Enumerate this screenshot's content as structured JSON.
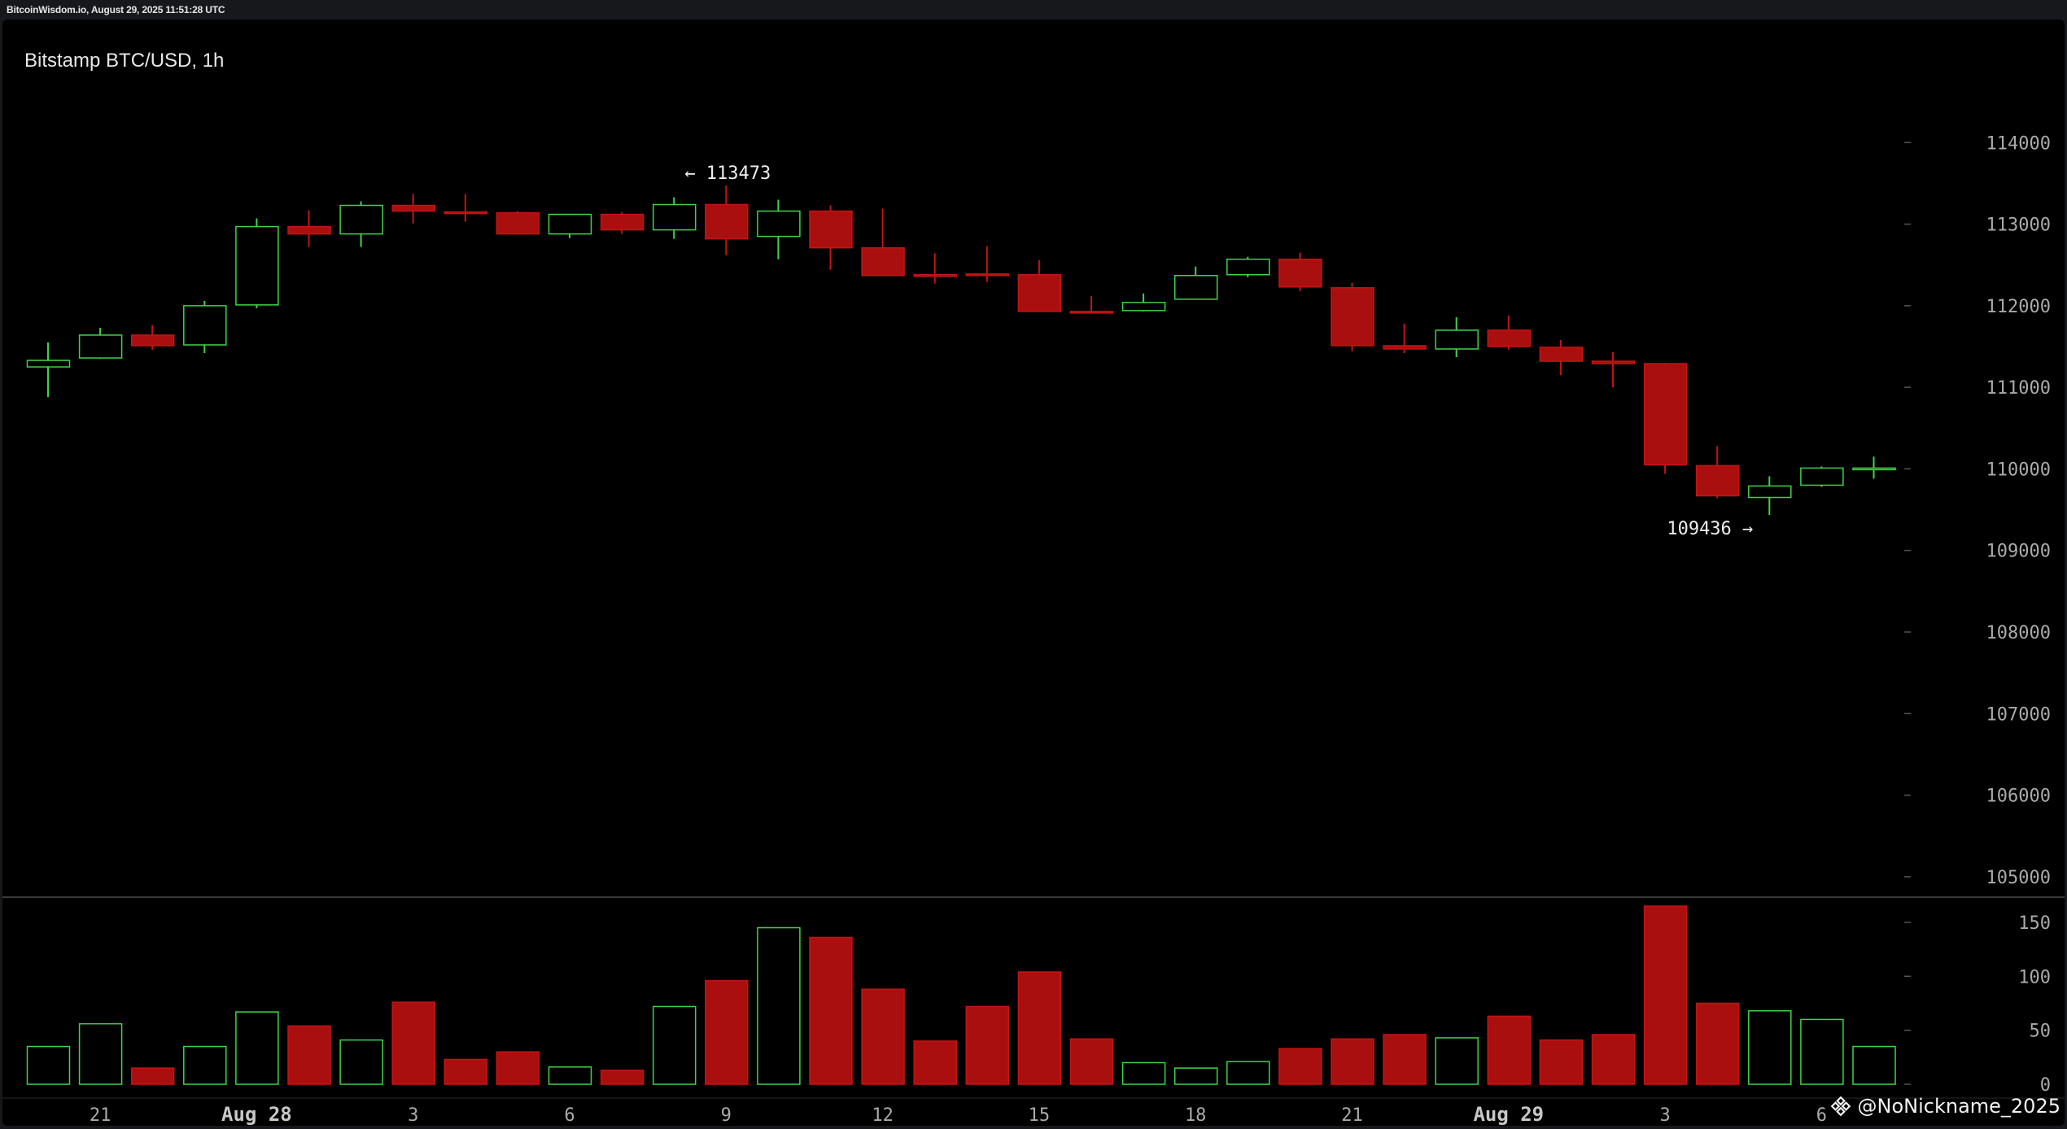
{
  "header": {
    "source_text": "BitcoinWisdom.io, August 29, 2025 11:51:28 UTC"
  },
  "watermark": {
    "text": "@NoNickname_2025",
    "icon": "binance-diamond-icon"
  },
  "colors": {
    "up": "#3fd447",
    "down": "#a90f0f",
    "down_edge": "#c41414",
    "axis_text": "#aaaaaa",
    "grid_tick": "#555555",
    "separator": "#3a3a3a",
    "annotation": "#eeeeee"
  },
  "chart_data": {
    "type": "candlestick",
    "title": "Bitstamp BTC/USD, 1h",
    "price_axis": {
      "ticks": [
        105000,
        106000,
        107000,
        108000,
        109000,
        110000,
        111000,
        112000,
        113000,
        114000
      ],
      "range": [
        104600,
        114950
      ]
    },
    "volume_axis": {
      "ticks": [
        0,
        50,
        100,
        150
      ],
      "range": [
        0,
        168
      ]
    },
    "x_labels": [
      {
        "label": "21",
        "index": 1,
        "bold": false
      },
      {
        "label": "Aug 28",
        "index": 4,
        "bold": true
      },
      {
        "label": "3",
        "index": 7,
        "bold": false
      },
      {
        "label": "6",
        "index": 10,
        "bold": false
      },
      {
        "label": "9",
        "index": 13,
        "bold": false
      },
      {
        "label": "12",
        "index": 16,
        "bold": false
      },
      {
        "label": "15",
        "index": 19,
        "bold": false
      },
      {
        "label": "18",
        "index": 22,
        "bold": false
      },
      {
        "label": "21",
        "index": 25,
        "bold": false
      },
      {
        "label": "Aug 29",
        "index": 28,
        "bold": true
      },
      {
        "label": "3",
        "index": 31,
        "bold": false
      },
      {
        "label": "6",
        "index": 34,
        "bold": false
      }
    ],
    "annotations": [
      {
        "text": "← 113473",
        "index": 13,
        "value": 113473,
        "side": "right"
      },
      {
        "text": "109436 →",
        "index": 33,
        "value": 109436,
        "side": "left"
      }
    ],
    "candles": [
      {
        "o": 111250,
        "h": 111550,
        "l": 110880,
        "c": 111330,
        "v": 35
      },
      {
        "o": 111360,
        "h": 111730,
        "l": 111350,
        "c": 111640,
        "v": 56
      },
      {
        "o": 111640,
        "h": 111760,
        "l": 111460,
        "c": 111510,
        "v": 15
      },
      {
        "o": 111520,
        "h": 112060,
        "l": 111420,
        "c": 112000,
        "v": 35
      },
      {
        "o": 112010,
        "h": 113070,
        "l": 111970,
        "c": 112970,
        "v": 67
      },
      {
        "o": 112970,
        "h": 113170,
        "l": 112720,
        "c": 112880,
        "v": 54
      },
      {
        "o": 112880,
        "h": 113280,
        "l": 112720,
        "c": 113230,
        "v": 41
      },
      {
        "o": 113230,
        "h": 113370,
        "l": 113010,
        "c": 113160,
        "v": 76
      },
      {
        "o": 113150,
        "h": 113370,
        "l": 113030,
        "c": 113140,
        "v": 23
      },
      {
        "o": 113140,
        "h": 113160,
        "l": 112880,
        "c": 112880,
        "v": 30
      },
      {
        "o": 112880,
        "h": 113120,
        "l": 112830,
        "c": 113120,
        "v": 16
      },
      {
        "o": 113120,
        "h": 113150,
        "l": 112880,
        "c": 112930,
        "v": 13
      },
      {
        "o": 112930,
        "h": 113330,
        "l": 112820,
        "c": 113240,
        "v": 72
      },
      {
        "o": 113240,
        "h": 113473,
        "l": 112620,
        "c": 112820,
        "v": 96
      },
      {
        "o": 112850,
        "h": 113300,
        "l": 112570,
        "c": 113160,
        "v": 145
      },
      {
        "o": 113160,
        "h": 113230,
        "l": 112440,
        "c": 112710,
        "v": 136
      },
      {
        "o": 112710,
        "h": 113190,
        "l": 112370,
        "c": 112370,
        "v": 88
      },
      {
        "o": 112380,
        "h": 112640,
        "l": 112270,
        "c": 112370,
        "v": 40
      },
      {
        "o": 112390,
        "h": 112730,
        "l": 112290,
        "c": 112380,
        "v": 72
      },
      {
        "o": 112380,
        "h": 112560,
        "l": 111930,
        "c": 111930,
        "v": 104
      },
      {
        "o": 111930,
        "h": 112120,
        "l": 111910,
        "c": 111920,
        "v": 42
      },
      {
        "o": 111940,
        "h": 112150,
        "l": 111930,
        "c": 112040,
        "v": 20
      },
      {
        "o": 112080,
        "h": 112480,
        "l": 112080,
        "c": 112370,
        "v": 15
      },
      {
        "o": 112380,
        "h": 112600,
        "l": 112350,
        "c": 112570,
        "v": 21
      },
      {
        "o": 112570,
        "h": 112650,
        "l": 112180,
        "c": 112230,
        "v": 33
      },
      {
        "o": 112220,
        "h": 112280,
        "l": 111440,
        "c": 111510,
        "v": 42
      },
      {
        "o": 111510,
        "h": 111780,
        "l": 111420,
        "c": 111470,
        "v": 46
      },
      {
        "o": 111470,
        "h": 111860,
        "l": 111370,
        "c": 111700,
        "v": 43
      },
      {
        "o": 111700,
        "h": 111880,
        "l": 111460,
        "c": 111500,
        "v": 63
      },
      {
        "o": 111490,
        "h": 111580,
        "l": 111150,
        "c": 111320,
        "v": 41
      },
      {
        "o": 111320,
        "h": 111430,
        "l": 111000,
        "c": 111290,
        "v": 46
      },
      {
        "o": 111290,
        "h": 111300,
        "l": 109940,
        "c": 110050,
        "v": 165
      },
      {
        "o": 110040,
        "h": 110280,
        "l": 109640,
        "c": 109670,
        "v": 75
      },
      {
        "o": 109650,
        "h": 109910,
        "l": 109436,
        "c": 109790,
        "v": 68
      },
      {
        "o": 109800,
        "h": 110030,
        "l": 109780,
        "c": 110010,
        "v": 60
      },
      {
        "o": 110000,
        "h": 110150,
        "l": 109880,
        "c": 110010,
        "v": 35
      }
    ]
  }
}
